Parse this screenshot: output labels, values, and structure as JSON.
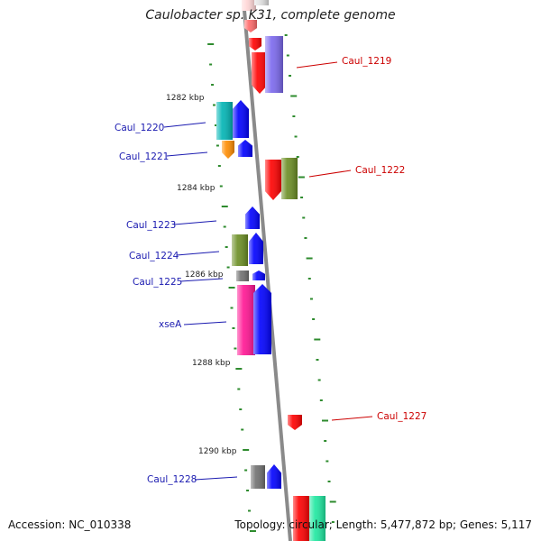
{
  "title": "Caulobacter sp. K31, complete genome",
  "accession": "Accession: NC_010338",
  "summary": "Topology: circular; Length: 5,477,872 bp; Genes: 5,117",
  "colors": {
    "backbone": "#8a8a8a",
    "tick": "#2e8b2e",
    "label_forward": "#1a1ab0",
    "label_reverse": "#cc0000"
  },
  "scale_labels": [
    "1282 kbp",
    "1284 kbp",
    "1286 kbp",
    "1288 kbp",
    "1290 kbp"
  ],
  "genes": [
    {
      "name": "Caul_1219",
      "strand": "reverse",
      "color": "#ff0000",
      "color2": "#7b68ee"
    },
    {
      "name": "Caul_1220",
      "strand": "forward",
      "color": "#00b5b5",
      "color2": "#0000ff"
    },
    {
      "name": "Caul_1221",
      "strand": "forward",
      "color": "#ff8c00",
      "color2": "#0000ff"
    },
    {
      "name": "Caul_1222",
      "strand": "reverse",
      "color": "#ff0000",
      "color2": "#6b8e23"
    },
    {
      "name": "Caul_1223",
      "strand": "forward",
      "color": "#0000ff"
    },
    {
      "name": "Caul_1224",
      "strand": "forward",
      "color": "#6b8e23",
      "color2": "#0000ff"
    },
    {
      "name": "Caul_1225",
      "strand": "forward",
      "color": "#707070",
      "color2": "#0000ff"
    },
    {
      "name": "xseA",
      "strand": "forward",
      "color": "#ff1493",
      "color2": "#0000ff"
    },
    {
      "name": "Caul_1227",
      "strand": "reverse",
      "color": "#ff0000"
    },
    {
      "name": "Caul_1228",
      "strand": "forward",
      "color": "#707070",
      "color2": "#0000ff"
    }
  ]
}
